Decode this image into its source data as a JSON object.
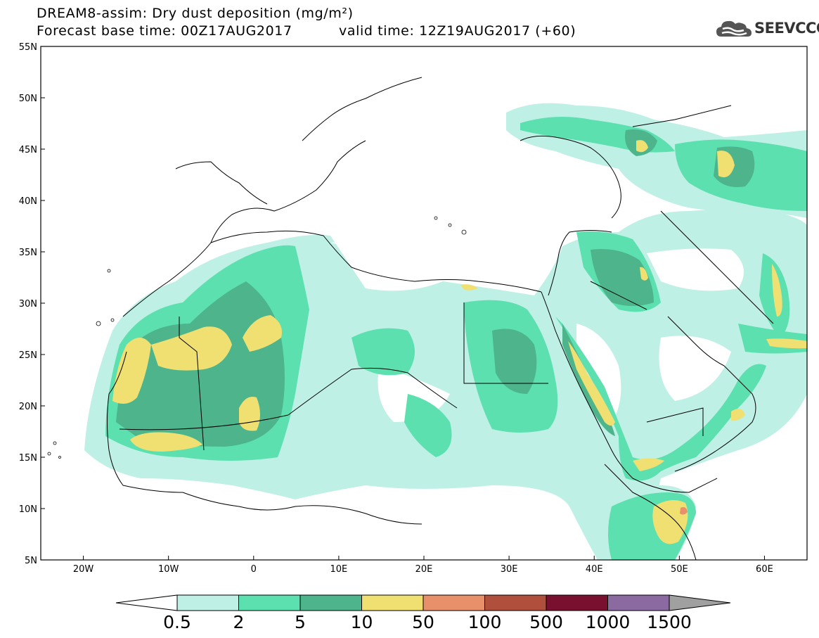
{
  "header": {
    "title": "DREAM8-assim: Dry dust deposition (mg/m²)",
    "base_time": "Forecast base time: 00Z17AUG2017",
    "valid_time": "valid time: 12Z19AUG2017 (+60)",
    "logo_text": "SEEVCCC"
  },
  "map": {
    "lon_ticks": [
      "20W",
      "10W",
      "0",
      "10E",
      "20E",
      "30E",
      "40E",
      "50E",
      "60E"
    ],
    "lat_ticks": [
      "55N",
      "50N",
      "45N",
      "40N",
      "35N",
      "30N",
      "25N",
      "20N",
      "15N",
      "10N",
      "5N"
    ],
    "lon_range": [
      -25,
      65
    ],
    "lat_range": [
      5,
      55
    ]
  },
  "colorbar": {
    "labels": [
      "0.5",
      "2",
      "5",
      "10",
      "50",
      "100",
      "500",
      "1000",
      "1500"
    ],
    "colors": [
      "#bff0e6",
      "#5de0b0",
      "#4db48c",
      "#f0e072",
      "#e8906a",
      "#b0503c",
      "#7a1030",
      "#8a6aa0"
    ],
    "under_color": "#ffffff",
    "over_color": "#a0a0a0"
  },
  "legend_colors": {
    "level_0_5": "#bff0e6",
    "level_2": "#5de0b0",
    "level_5": "#4db48c",
    "level_10": "#f0e072",
    "level_50": "#e8906a"
  }
}
